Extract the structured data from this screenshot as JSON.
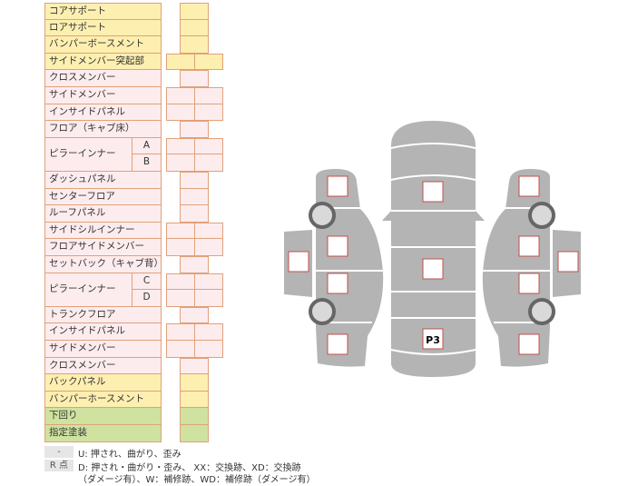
{
  "table": {
    "rows": [
      {
        "label": "コアサポート",
        "color": "yellow",
        "cells": 1
      },
      {
        "label": "ロアサポート",
        "color": "yellow",
        "cells": 1
      },
      {
        "label": "バンパーボースメント",
        "color": "yellow",
        "cells": 1
      },
      {
        "label": "サイドメンバー突起部",
        "color": "yellow",
        "cells": 2
      },
      {
        "label": "クロスメンバー",
        "color": "pink",
        "cells": 1
      },
      {
        "label": "サイドメンバー",
        "color": "pink",
        "cells": 2
      },
      {
        "label": "インサイドパネル",
        "color": "pink",
        "cells": 2
      },
      {
        "label": "フロア（キャブ床）",
        "color": "pink",
        "cells": 1
      },
      {
        "label": "ピラーインナー",
        "color": "pink",
        "cells": 2,
        "sub": [
          "A",
          "B"
        ]
      },
      {
        "label": "ダッシュパネル",
        "color": "pink",
        "cells": 1
      },
      {
        "label": "センターフロア",
        "color": "pink",
        "cells": 1
      },
      {
        "label": "ルーフパネル",
        "color": "pink",
        "cells": 1
      },
      {
        "label": "サイドシルインナー",
        "color": "pink",
        "cells": 2
      },
      {
        "label": "フロアサイドメンバー",
        "color": "pink",
        "cells": 2
      },
      {
        "label": "セットバック（キャブ背）",
        "color": "pink",
        "cells": 1
      },
      {
        "label": "ピラーインナー",
        "color": "pink",
        "cells": 2,
        "sub": [
          "C",
          "D"
        ]
      },
      {
        "label": "トランクフロア",
        "color": "pink",
        "cells": 1
      },
      {
        "label": "インサイドパネル",
        "color": "pink",
        "cells": 2
      },
      {
        "label": "サイドメンバー",
        "color": "pink",
        "cells": 2
      },
      {
        "label": "クロスメンバー",
        "color": "pink",
        "cells": 1
      },
      {
        "label": "バックパネル",
        "color": "yellow",
        "cells": 1
      },
      {
        "label": "バンパーホースメント",
        "color": "yellow",
        "cells": 1
      },
      {
        "label": "下回り",
        "color": "green",
        "cells": 1
      },
      {
        "label": "指定塗装",
        "color": "green",
        "cells": 1
      }
    ]
  },
  "legend": {
    "tag1": "-",
    "line1": "U: 押され、曲がり、歪み",
    "tag2": "R 点",
    "line2": "D: 押され・曲がり・歪み、 XX：交換跡、XD：交換跡",
    "line3": "（ダメージ有）、W：補修跡、WD：補修跡（ダメージ有）"
  },
  "diagram": {
    "marker_label": "P3"
  },
  "colors": {
    "yellow": "#fcefb0",
    "pink": "#fdecee",
    "green": "#cfe2a0",
    "border": "#e0a17a",
    "car": "#b4b4b4",
    "marker_border": "#c0504d"
  }
}
